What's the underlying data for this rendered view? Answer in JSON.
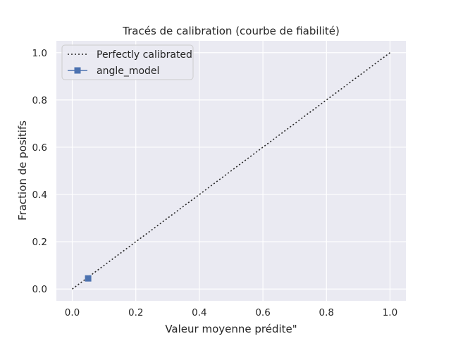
{
  "chart_data": {
    "type": "line",
    "title": "Tracés de calibration (courbe de fiabilité)",
    "xlabel": "Valeur moyenne prédite\"",
    "ylabel": "Fraction de positifs",
    "xlim": [
      -0.05,
      1.05
    ],
    "ylim": [
      -0.05,
      1.05
    ],
    "x_ticks": [
      0.0,
      0.2,
      0.4,
      0.6,
      0.8,
      1.0
    ],
    "y_ticks": [
      0.0,
      0.2,
      0.4,
      0.6,
      0.8,
      1.0
    ],
    "x_tick_labels": [
      "0.0",
      "0.2",
      "0.4",
      "0.6",
      "0.8",
      "1.0"
    ],
    "y_tick_labels": [
      "0.0",
      "0.2",
      "0.4",
      "0.6",
      "0.8",
      "1.0"
    ],
    "grid": true,
    "legend_position": "top-left",
    "series": [
      {
        "name": "Perfectly calibrated",
        "style": "dotted",
        "color": "#262626",
        "x": [
          0,
          1
        ],
        "y": [
          0,
          1
        ]
      },
      {
        "name": "angle_model",
        "style": "solid",
        "marker": "square",
        "color": "#4c72b0",
        "x": [
          0.05
        ],
        "y": [
          0.045
        ]
      }
    ]
  },
  "colors": {
    "axes_bg": "#eaeaf2",
    "grid": "#ffffff",
    "text": "#262626"
  }
}
